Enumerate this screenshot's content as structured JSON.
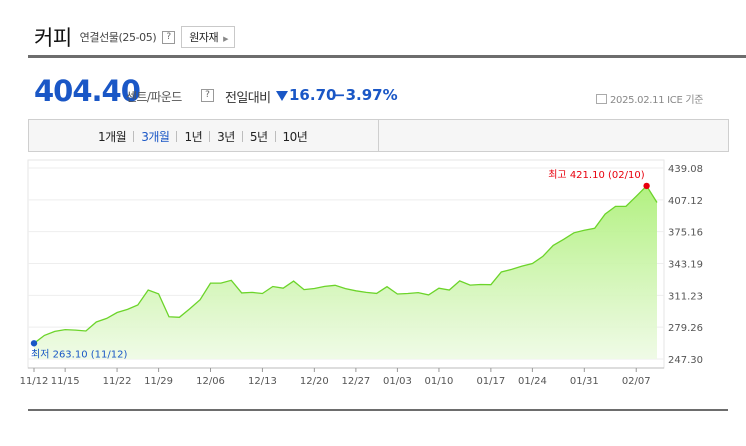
{
  "header": {
    "title": "커피",
    "subtitle": "연결선물(25-05)",
    "help": "?",
    "raw_button": "원자재"
  },
  "quote": {
    "price": "404.40",
    "unit": "센트/파운드",
    "help": "?",
    "change_label": "전일대비",
    "change": "16.70",
    "change_pct": "−3.97%",
    "date": "2025.02.11",
    "source": "ICE 기준"
  },
  "tabs": [
    "1개월",
    "3개월",
    "1년",
    "3년",
    "5년",
    "10년"
  ],
  "active_tab": "3개월",
  "colors": {
    "accent": "#1a57c6",
    "line": "#6cd42a",
    "high": "#e8000d",
    "low": "#1a57c6"
  },
  "chart_data": {
    "type": "area",
    "ylim": [
      247.3,
      439.08
    ],
    "yticks": [
      "439.08",
      "407.12",
      "375.16",
      "343.19",
      "311.23",
      "279.26",
      "247.30"
    ],
    "ytick_values": [
      439.08,
      407.12,
      375.16,
      343.19,
      311.23,
      279.26,
      247.3
    ],
    "xticks": [
      "11/12",
      "11/15",
      "11/22",
      "11/29",
      "12/06",
      "12/13",
      "12/20",
      "12/27",
      "01/03",
      "01/10",
      "01/17",
      "01/24",
      "01/31",
      "02/07"
    ],
    "dates": [
      "11/12",
      "11/13",
      "11/14",
      "11/15",
      "11/18",
      "11/19",
      "11/20",
      "11/21",
      "11/22",
      "11/25",
      "11/26",
      "11/27",
      "11/29",
      "12/02",
      "12/03",
      "12/04",
      "12/05",
      "12/06",
      "12/09",
      "12/10",
      "12/11",
      "12/12",
      "12/13",
      "12/16",
      "12/17",
      "12/18",
      "12/19",
      "12/20",
      "12/23",
      "12/24",
      "12/26",
      "12/27",
      "12/30",
      "12/31",
      "01/02",
      "01/03",
      "01/06",
      "01/07",
      "01/08",
      "01/10",
      "01/13",
      "01/14",
      "01/15",
      "01/16",
      "01/17",
      "01/21",
      "01/22",
      "01/23",
      "01/24",
      "01/27",
      "01/28",
      "01/29",
      "01/30",
      "01/31",
      "02/03",
      "02/04",
      "02/05",
      "02/06",
      "02/07",
      "02/10",
      "02/11"
    ],
    "values": [
      263.1,
      271.0,
      275.0,
      276.8,
      276.3,
      275.4,
      284.5,
      288.1,
      294.0,
      297.1,
      301.5,
      316.6,
      312.7,
      289.7,
      289.2,
      297.8,
      306.8,
      323.5,
      323.5,
      326.3,
      313.7,
      314.2,
      313.1,
      320.1,
      318.4,
      325.5,
      317.0,
      318.1,
      320.2,
      321.3,
      318.0,
      315.8,
      314.2,
      313.2,
      319.9,
      312.6,
      313.1,
      314.0,
      311.7,
      318.4,
      316.6,
      325.7,
      321.5,
      322.1,
      321.9,
      334.7,
      337.3,
      340.6,
      343.2,
      350.3,
      361.4,
      367.4,
      374.0,
      376.6,
      378.5,
      392.8,
      400.5,
      400.5,
      410.7,
      421.1,
      404.4
    ],
    "high_label": "최고 421.10 (02/10)",
    "low_label": "최저 263.10 (11/12)"
  }
}
